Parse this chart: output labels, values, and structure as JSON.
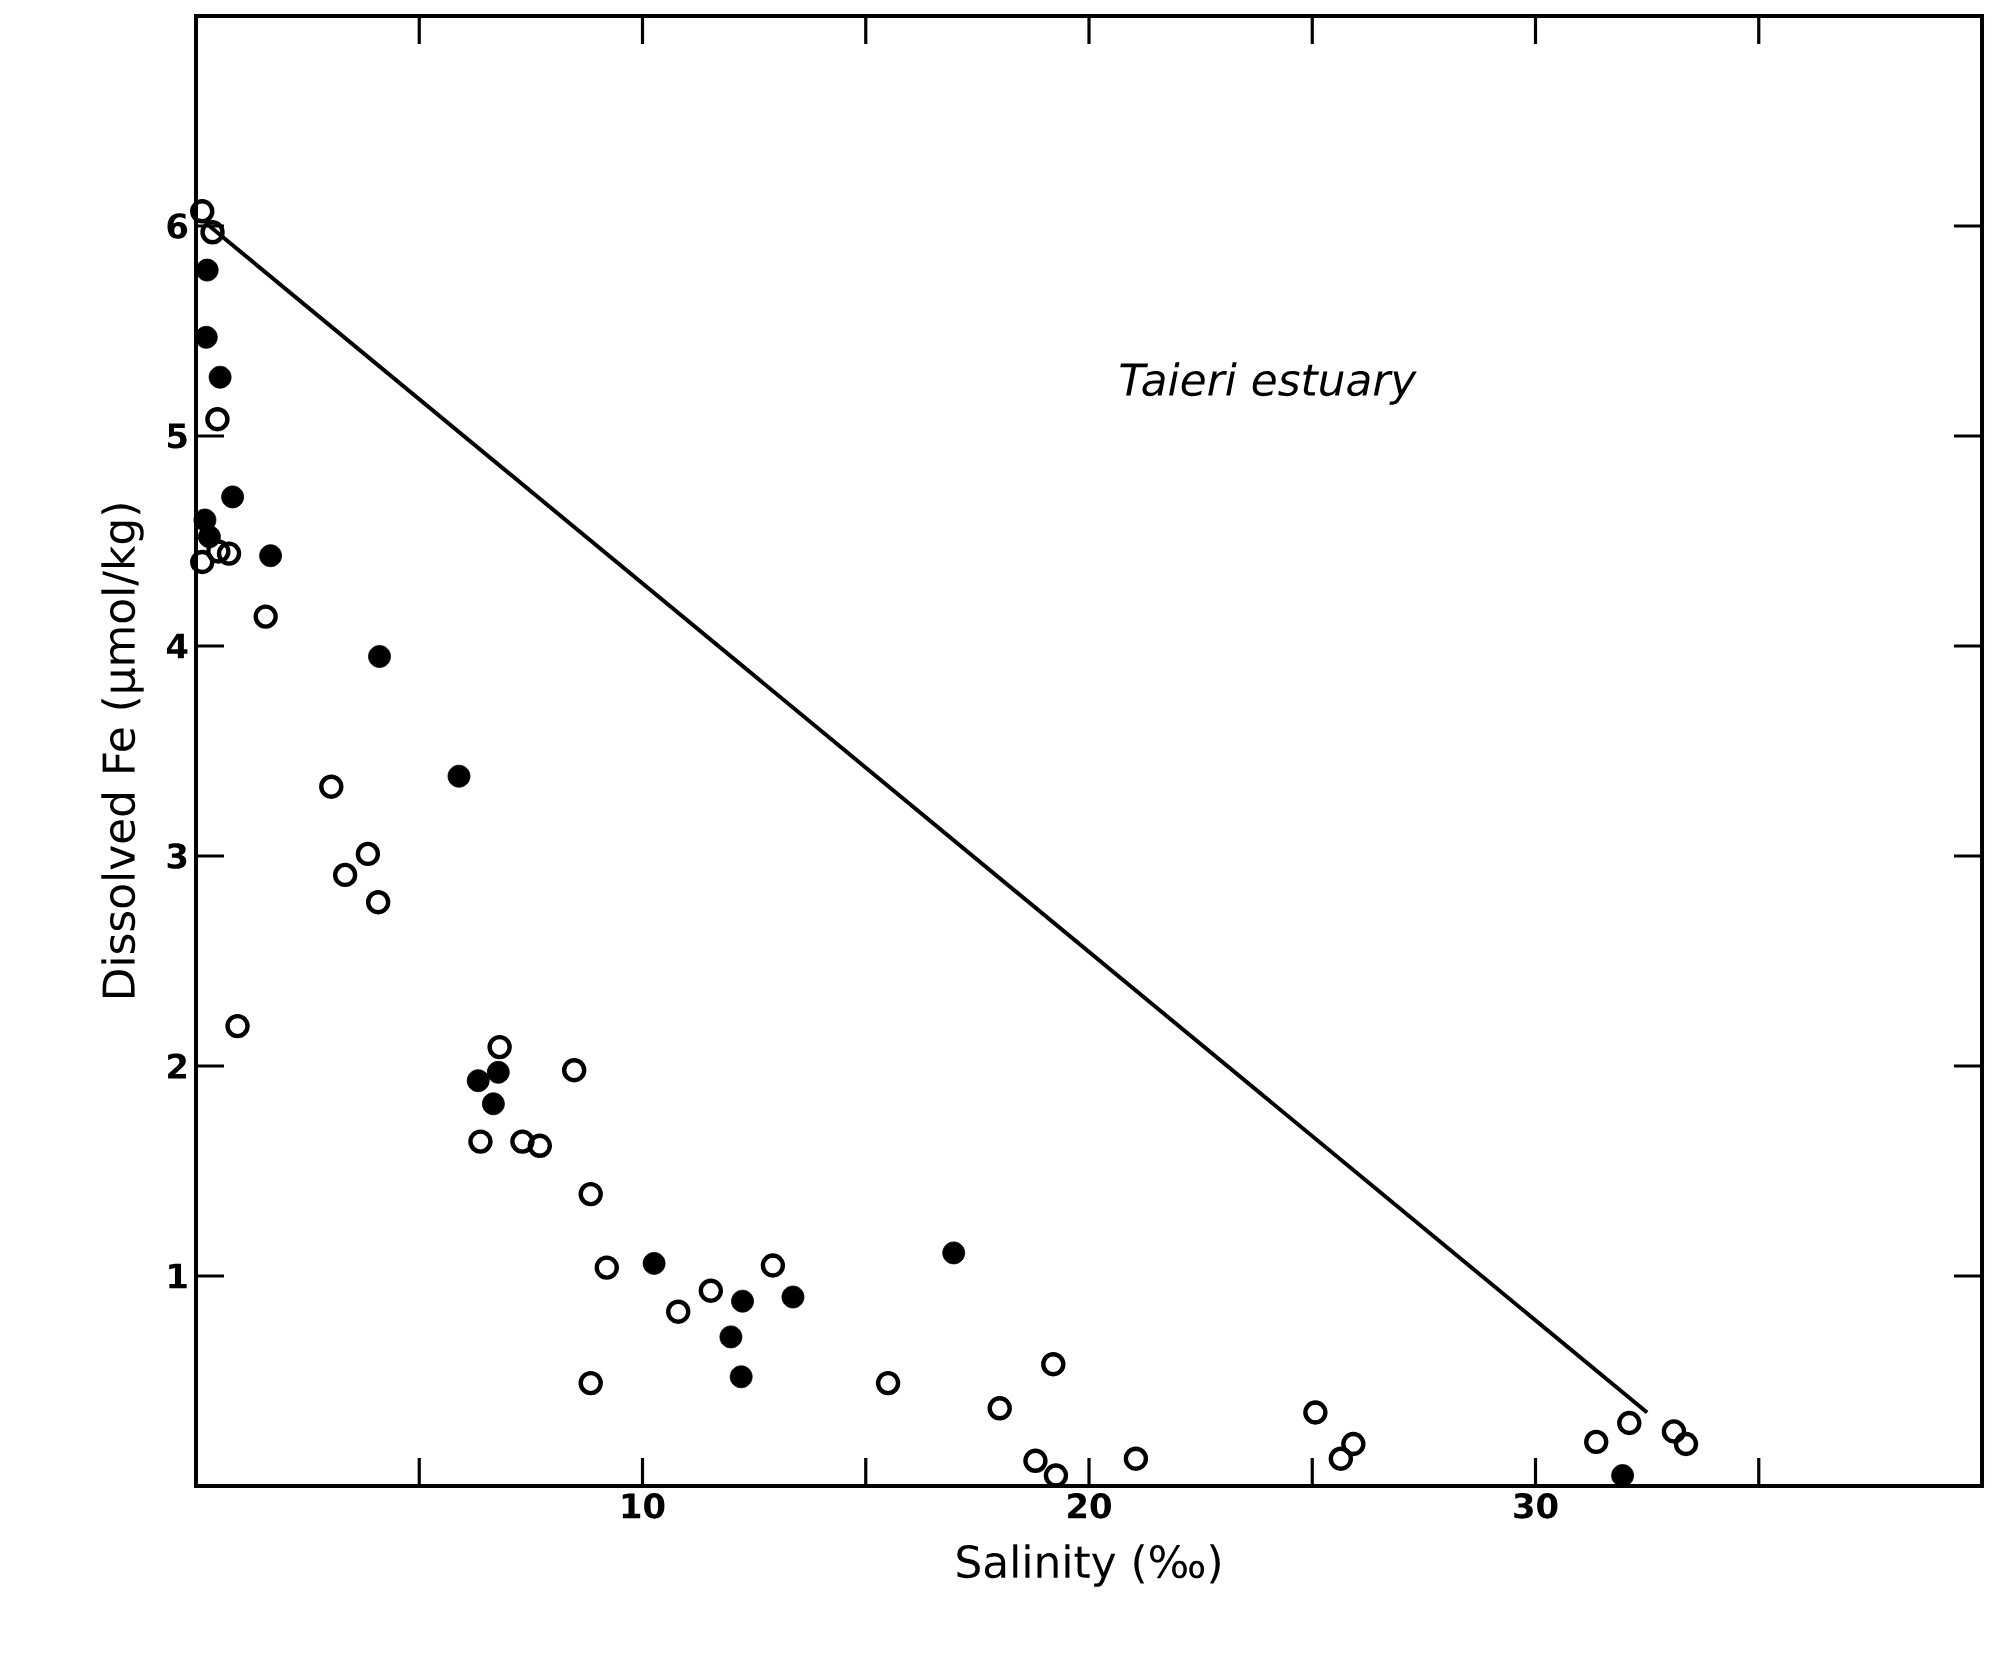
{
  "chart_data": {
    "type": "scatter",
    "xlabel": "Salinity (‰)",
    "ylabel": "Dissolved Fe (µmol/kg)",
    "annotations": [
      "*Taieri estuary*"
    ],
    "xlim": [
      0,
      40
    ],
    "ylim": [
      0,
      7
    ],
    "xticks": [
      {
        "value": 5,
        "label": null
      },
      10,
      {
        "value": 15,
        "label": null
      },
      20,
      {
        "value": 25,
        "label": null
      },
      30,
      {
        "value": 35,
        "label": null
      }
    ],
    "yticks": [
      1,
      2,
      3,
      4,
      5,
      6
    ],
    "series": [
      {
        "marker": "circle-open",
        "color": "#000000",
        "x": [
          0.14,
          0.37,
          0.48,
          0.14,
          0.5,
          0.74,
          1.56,
          0.93,
          3.03,
          3.34,
          3.85,
          4.08,
          6.37,
          6.8,
          7.31,
          7.7,
          8.47,
          8.84,
          8.84,
          9.2,
          10.8,
          11.53,
          12.92,
          15.5,
          18.0,
          18.8,
          19.2,
          19.26,
          21.05,
          25.07,
          25.64,
          25.92,
          31.36,
          32.1,
          33.1,
          33.37
        ],
        "values": [
          6.07,
          5.97,
          5.08,
          4.4,
          4.45,
          4.44,
          4.14,
          2.19,
          3.33,
          2.91,
          3.01,
          2.78,
          1.64,
          2.09,
          1.64,
          1.62,
          1.98,
          1.39,
          0.49,
          1.04,
          0.83,
          0.93,
          1.05,
          0.49,
          0.37,
          0.12,
          0.58,
          0.05,
          0.13,
          0.35,
          0.13,
          0.2,
          0.21,
          0.3,
          0.26,
          0.2
        ]
      },
      {
        "marker": "circle",
        "color": "#000000",
        "x": [
          0.25,
          0.23,
          0.54,
          0.2,
          0.3,
          0.82,
          1.67,
          4.11,
          5.89,
          6.32,
          6.77,
          6.66,
          10.26,
          11.98,
          12.24,
          12.21,
          13.37,
          16.97,
          31.95
        ],
        "values": [
          5.79,
          5.47,
          5.28,
          4.6,
          4.52,
          4.71,
          4.43,
          3.95,
          3.38,
          1.93,
          1.97,
          1.82,
          1.06,
          0.71,
          0.88,
          0.52,
          0.9,
          1.11,
          0.05
        ]
      },
      {
        "type": "line",
        "marker": "none",
        "line_style": "solid",
        "color": "#000000",
        "x": [
          0.3,
          32.5
        ],
        "values": [
          6.0,
          0.35
        ]
      }
    ]
  }
}
